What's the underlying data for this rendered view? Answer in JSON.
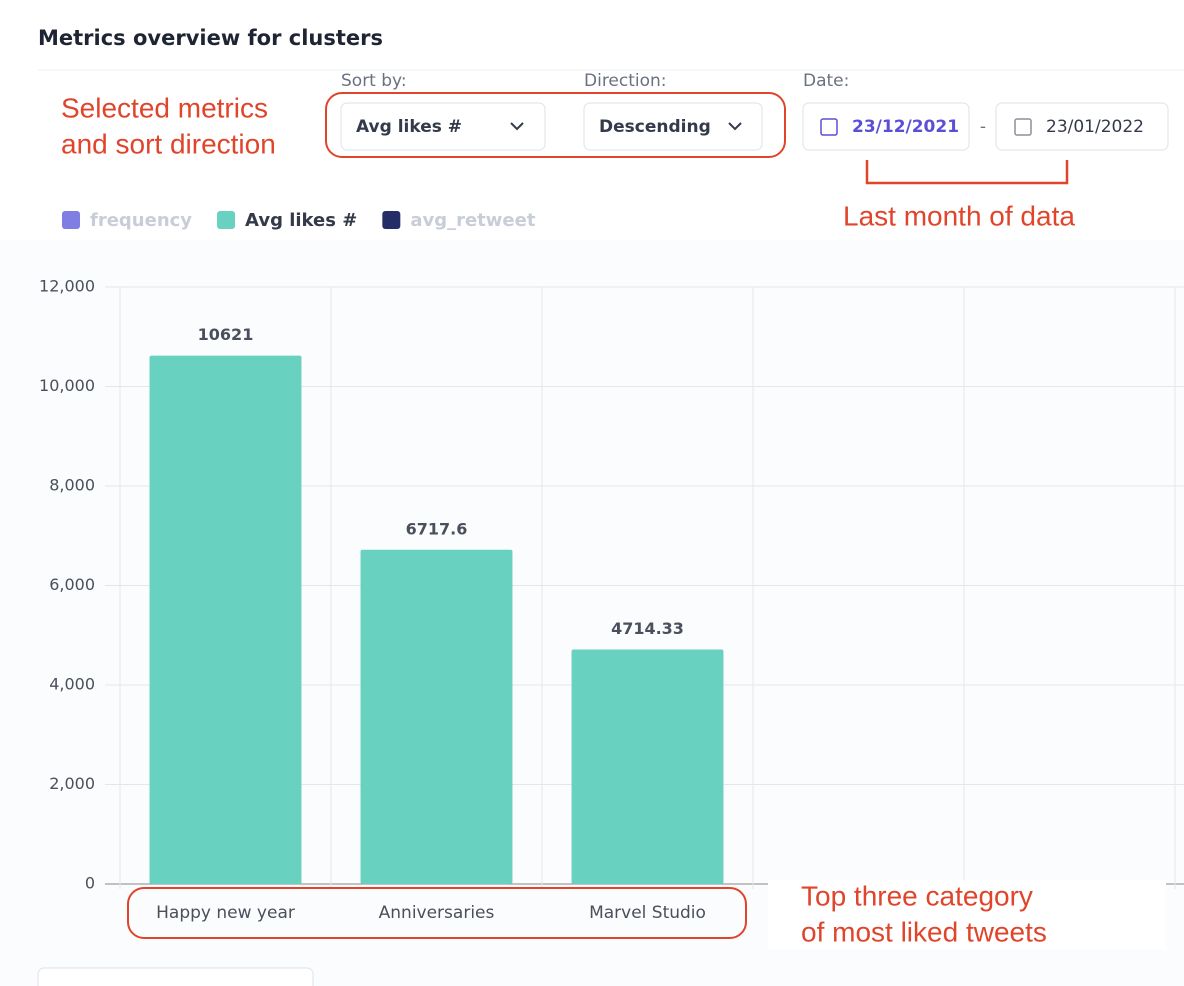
{
  "header": {
    "title": "Metrics overview for clusters"
  },
  "controls": {
    "sort_label": "Sort by:",
    "sort_value": "Avg likes #",
    "direction_label": "Direction:",
    "direction_value": "Descending",
    "date_label": "Date:",
    "date_from": "23/12/2021",
    "date_separator": "-",
    "date_to": "23/01/2022"
  },
  "annotations": {
    "selection": [
      "Selected metrics",
      "and sort direction"
    ],
    "date": [
      "Last month of data"
    ],
    "categories": [
      "Top three category",
      "of most liked tweets"
    ]
  },
  "chart_data": {
    "type": "bar",
    "categories": [
      "Happy new year",
      "Anniversaries",
      "Marvel Studio",
      null,
      null
    ],
    "series": [
      {
        "name": "frequency",
        "color": "#7f7fe3",
        "visible": false
      },
      {
        "name": "Avg likes #",
        "color": "#68d1bf",
        "visible": true,
        "values": [
          10621,
          6717.6,
          4714.33,
          null,
          null
        ]
      },
      {
        "name": "avg_retweet",
        "color": "#252d66",
        "visible": false
      }
    ],
    "ylim": [
      0,
      12000
    ],
    "yticks": [
      0,
      {
        "value": 2000,
        "label": "2,000"
      },
      {
        "value": 4000,
        "label": "4,000"
      },
      {
        "value": 6000,
        "label": "6,000"
      },
      {
        "value": 8000,
        "label": "8,000"
      },
      {
        "value": 10000,
        "label": "10,000"
      },
      {
        "value": 12000,
        "label": "12,000"
      }
    ],
    "grid": true
  }
}
